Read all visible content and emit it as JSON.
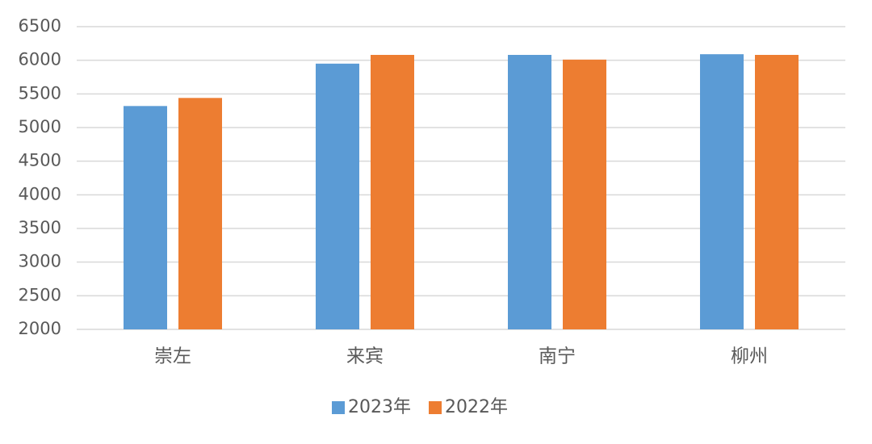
{
  "chart_data": {
    "type": "bar",
    "categories": [
      "崇左",
      "来宾",
      "南宁",
      "柳州"
    ],
    "series": [
      {
        "name": "2023年",
        "color": "#5b9bd5",
        "values": [
          5320,
          5950,
          6080,
          6090
        ]
      },
      {
        "name": "2022年",
        "color": "#ed7d31",
        "values": [
          5440,
          6080,
          6010,
          6080
        ]
      }
    ],
    "ylim": [
      2000,
      6500
    ],
    "yticks": [
      2000,
      2500,
      3000,
      3500,
      4000,
      4500,
      5000,
      5500,
      6000,
      6500
    ],
    "grid": true,
    "legend": "bottom"
  }
}
